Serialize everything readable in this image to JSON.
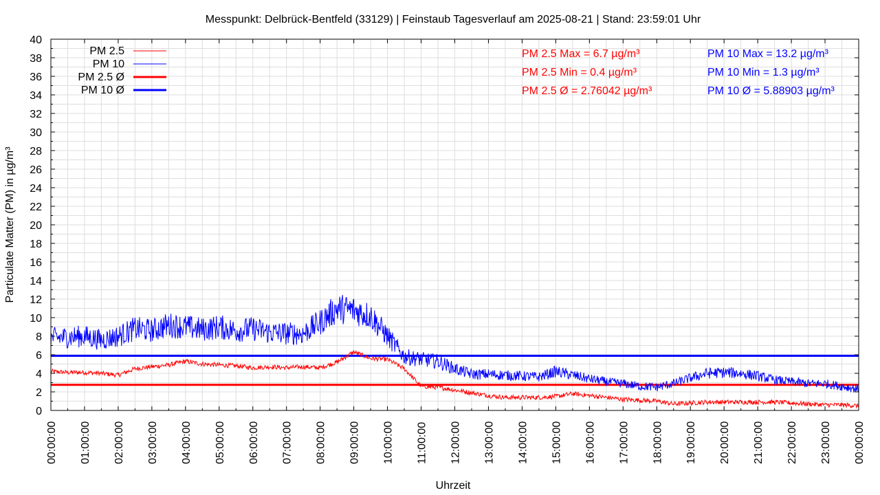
{
  "chart_data": {
    "type": "line",
    "title": "Messpunkt: Delbrück-Bentfeld (33129) | Feinstaub Tagesverlauf am 2025-08-21 | Stand: 23:59:01 Uhr",
    "xlabel": "Uhrzeit",
    "ylabel": "Particulate Matter (PM) in µg/m³",
    "xlim_hours": [
      0,
      24
    ],
    "ylim": [
      0,
      40
    ],
    "y_ticks": [
      0,
      2,
      4,
      6,
      8,
      10,
      12,
      14,
      16,
      18,
      20,
      22,
      24,
      26,
      28,
      30,
      32,
      34,
      36,
      38,
      40
    ],
    "x_tick_labels": [
      "00:00:00",
      "01:00:00",
      "02:00:00",
      "03:00:00",
      "04:00:00",
      "05:00:00",
      "06:00:00",
      "07:00:00",
      "08:00:00",
      "09:00:00",
      "10:00:00",
      "11:00:00",
      "12:00:00",
      "13:00:00",
      "14:00:00",
      "15:00:00",
      "16:00:00",
      "17:00:00",
      "18:00:00",
      "19:00:00",
      "20:00:00",
      "21:00:00",
      "22:00:00",
      "23:00:00",
      "00:00:00"
    ],
    "grid": true,
    "legend_position": "top-left",
    "x_hours_step": 0.5,
    "series": [
      {
        "name": "PM 2.5",
        "color": "#ff0000",
        "noise": 0.25,
        "values": [
          4.2,
          4.1,
          4.1,
          4.0,
          3.8,
          4.5,
          4.7,
          4.9,
          5.3,
          5.0,
          4.9,
          4.8,
          4.6,
          4.7,
          4.6,
          4.7,
          4.6,
          5.2,
          6.3,
          5.6,
          5.5,
          4.5,
          2.6,
          2.5,
          2.2,
          1.9,
          1.6,
          1.4,
          1.4,
          1.4,
          1.5,
          1.8,
          1.6,
          1.4,
          1.2,
          1.1,
          1.0,
          0.7,
          0.8,
          0.9,
          0.9,
          0.9,
          0.9,
          0.9,
          0.8,
          0.7,
          0.6,
          0.6,
          0.5
        ]
      },
      {
        "name": "PM 10",
        "color": "#0000ff",
        "noise": 1.2,
        "values": [
          7.8,
          7.9,
          8.0,
          7.6,
          8.0,
          8.8,
          8.6,
          9.2,
          9.0,
          8.7,
          9.0,
          8.6,
          8.8,
          8.4,
          8.3,
          8.3,
          9.5,
          11.0,
          10.8,
          10.2,
          8.0,
          5.8,
          5.5,
          5.3,
          4.5,
          3.9,
          3.9,
          3.8,
          3.7,
          3.6,
          4.2,
          3.8,
          3.4,
          3.1,
          2.9,
          2.6,
          2.5,
          2.9,
          3.5,
          4.0,
          4.1,
          4.0,
          3.7,
          3.3,
          3.1,
          2.9,
          2.9,
          2.6,
          2.3
        ]
      }
    ],
    "averages": [
      {
        "name": "PM 2.5 Ø",
        "value": 2.76042,
        "color": "#ff0000"
      },
      {
        "name": "PM 10 Ø",
        "value": 5.88903,
        "color": "#0000ff"
      }
    ],
    "annotations": {
      "pm25": [
        "PM 2.5 Max = 6.7 µg/m³",
        "PM 2.5 Min = 0.4 µg/m³",
        "PM 2.5 Ø = 2.76042 µg/m³"
      ],
      "pm10": [
        "PM 10 Max = 13.2 µg/m³",
        "PM 10 Min = 1.3 µg/m³",
        "PM 10 Ø = 5.88903 µg/m³"
      ]
    },
    "legend": [
      "PM 2.5",
      "PM 10",
      "PM 2.5 Ø",
      "PM 10 Ø"
    ]
  }
}
